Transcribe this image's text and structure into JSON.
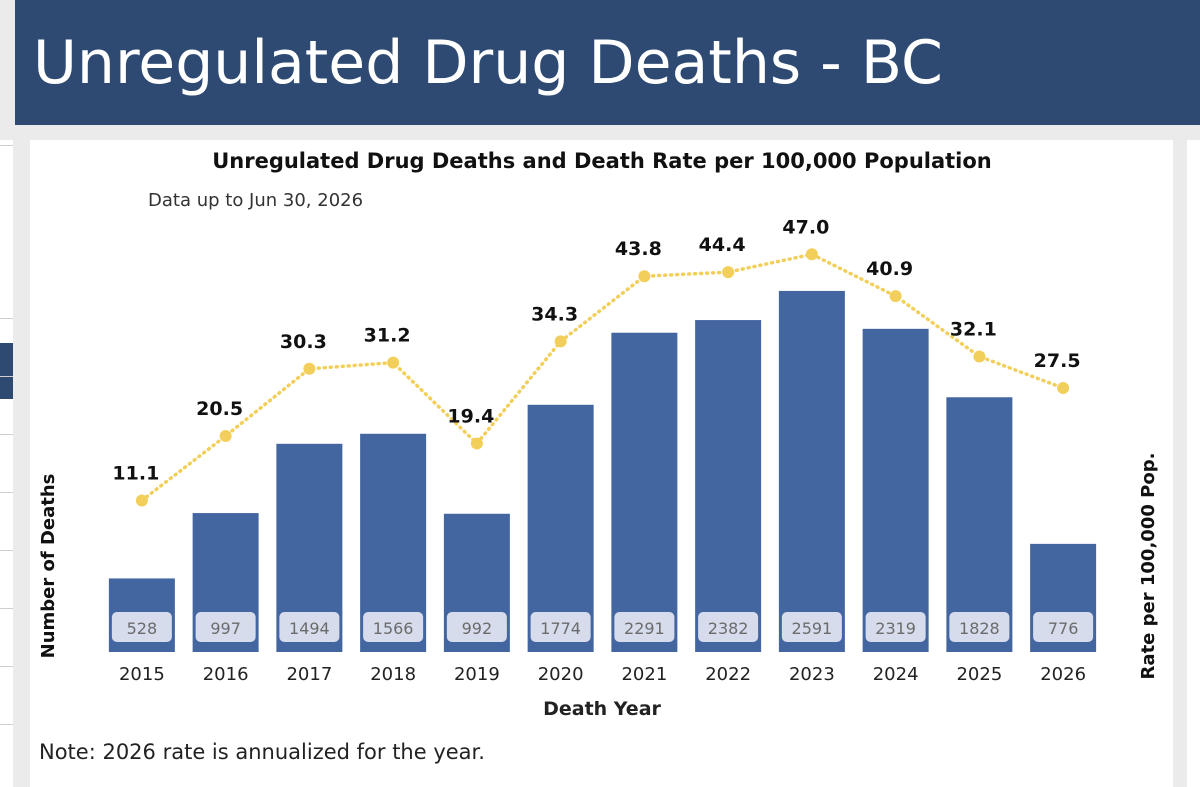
{
  "header": {
    "title": "Unregulated Drug Deaths - BC"
  },
  "note": "Note: 2026 rate is annualized for the year.",
  "colors": {
    "header_bg": "#2e4a72",
    "bar": "#4466a0",
    "line": "#f2cf5b",
    "label_box": "#d6dcec"
  },
  "chart_data": {
    "type": "bar",
    "title": "Unregulated Drug Deaths and Death Rate per 100,000 Population",
    "subtitle": "Data up to Jun 30, 2026",
    "xlabel": "Death Year",
    "ylabel": "Number of Deaths",
    "y2label": "Rate per 100,000 Pop.",
    "categories": [
      "2015",
      "2016",
      "2017",
      "2018",
      "2019",
      "2020",
      "2021",
      "2022",
      "2023",
      "2024",
      "2025",
      "2026"
    ],
    "series": [
      {
        "type": "bar",
        "axis": "left",
        "values": [
          528,
          997,
          1494,
          1566,
          992,
          1774,
          2291,
          2382,
          2591,
          2319,
          1828,
          776
        ]
      },
      {
        "type": "line",
        "axis": "right",
        "style": "dotted",
        "values": [
          11.1,
          20.5,
          30.3,
          31.2,
          19.4,
          34.3,
          43.8,
          44.4,
          47.0,
          40.9,
          32.1,
          27.5
        ]
      }
    ],
    "ylim": [
      0,
      3100
    ],
    "y2lim": [
      -11,
      52
    ],
    "grid": false,
    "legend": "none"
  }
}
